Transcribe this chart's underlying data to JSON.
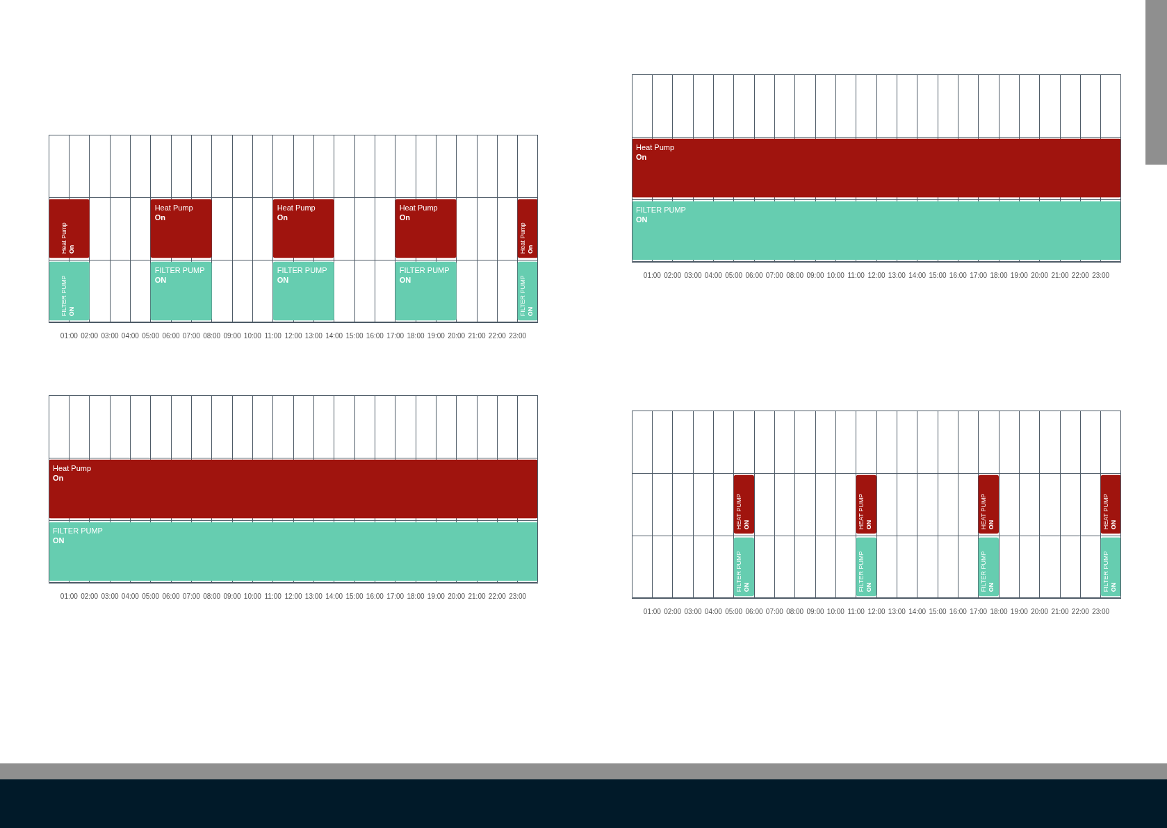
{
  "chart_data": [
    {
      "type": "bar",
      "orientation": "horizontal",
      "categories": [
        null,
        null,
        null
      ],
      "series": [
        {
          "name": "Heat Pump",
          "color": "#a0140e",
          "base": [
            null,
            0,
            null
          ],
          "values": [
            null,
            2,
            null
          ],
          "value_labels": [
            null,
            "On",
            null
          ]
        },
        {
          "name": "Heat Pump",
          "color": "#a0140e",
          "base": [
            null,
            5,
            null
          ],
          "values": [
            null,
            3,
            null
          ],
          "value_labels": [
            null,
            "On",
            null
          ]
        },
        {
          "name": "Heat Pump",
          "color": "#a0140e",
          "base": [
            null,
            11,
            null
          ],
          "values": [
            null,
            3,
            null
          ],
          "value_labels": [
            null,
            "On",
            null
          ]
        },
        {
          "name": "Heat Pump",
          "color": "#a0140e",
          "base": [
            null,
            17,
            null
          ],
          "values": [
            null,
            3,
            null
          ],
          "value_labels": [
            null,
            "On",
            null
          ]
        },
        {
          "name": "Heat Pump",
          "color": "#a0140e",
          "base": [
            null,
            23,
            null
          ],
          "values": [
            null,
            1,
            null
          ],
          "value_labels": [
            null,
            "On",
            null
          ]
        },
        {
          "name": "FILTER PUMP",
          "color": "#66cdb0",
          "base": [
            null,
            null,
            0
          ],
          "values": [
            null,
            null,
            2
          ],
          "value_labels": [
            null,
            null,
            "ON"
          ]
        },
        {
          "name": "FILTER PUMP",
          "color": "#66cdb0",
          "base": [
            null,
            null,
            5
          ],
          "values": [
            null,
            null,
            3
          ],
          "value_labels": [
            null,
            null,
            "ON"
          ]
        },
        {
          "name": "FILTER PUMP",
          "color": "#66cdb0",
          "base": [
            null,
            null,
            11
          ],
          "values": [
            null,
            null,
            3
          ],
          "value_labels": [
            null,
            null,
            "ON"
          ]
        },
        {
          "name": "FILTER PUMP",
          "color": "#66cdb0",
          "base": [
            null,
            null,
            17
          ],
          "values": [
            null,
            null,
            3
          ],
          "value_labels": [
            null,
            null,
            "ON"
          ]
        },
        {
          "name": "FILTER PUMP",
          "color": "#66cdb0",
          "base": [
            null,
            null,
            23
          ],
          "values": [
            null,
            null,
            1
          ],
          "value_labels": [
            null,
            null,
            "ON"
          ]
        }
      ],
      "xlim": [
        0,
        24
      ],
      "xticks": [
        {
          "value": 1,
          "label": "01:00"
        },
        {
          "value": 2,
          "label": "02:00"
        },
        {
          "value": 3,
          "label": "03:00"
        },
        {
          "value": 4,
          "label": "04:00"
        },
        {
          "value": 5,
          "label": "05:00"
        },
        {
          "value": 6,
          "label": "06:00"
        },
        {
          "value": 7,
          "label": "07:00"
        },
        {
          "value": 8,
          "label": "08:00"
        },
        {
          "value": 9,
          "label": "09:00"
        },
        {
          "value": 10,
          "label": "10:00"
        },
        {
          "value": 11,
          "label": "11:00"
        },
        {
          "value": 12,
          "label": "12:00"
        },
        {
          "value": 13,
          "label": "13:00"
        },
        {
          "value": 14,
          "label": "14:00"
        },
        {
          "value": 15,
          "label": "15:00"
        },
        {
          "value": 16,
          "label": "16:00"
        },
        {
          "value": 17,
          "label": "17:00"
        },
        {
          "value": 18,
          "label": "18:00"
        },
        {
          "value": 19,
          "label": "19:00"
        },
        {
          "value": 20,
          "label": "20:00"
        },
        {
          "value": 21,
          "label": "21:00"
        },
        {
          "value": 22,
          "label": "22:00"
        },
        {
          "value": 23,
          "label": "23:00"
        }
      ],
      "grid": true,
      "tick_labels": "x"
    },
    {
      "type": "bar",
      "orientation": "horizontal",
      "categories": [
        null,
        null,
        null
      ],
      "series": [
        {
          "name": "Heat Pump",
          "color": "#a0140e",
          "base": [
            null,
            0,
            null
          ],
          "values": [
            null,
            24,
            null
          ],
          "value_labels": [
            null,
            "On",
            null
          ]
        },
        {
          "name": "FILTER PUMP",
          "color": "#66cdb0",
          "base": [
            null,
            null,
            0
          ],
          "values": [
            null,
            null,
            24
          ],
          "value_labels": [
            null,
            null,
            "ON"
          ]
        }
      ],
      "xlim": [
        0,
        24
      ],
      "xticks": [
        {
          "value": 1,
          "label": "01:00"
        },
        {
          "value": 2,
          "label": "02:00"
        },
        {
          "value": 3,
          "label": "03:00"
        },
        {
          "value": 4,
          "label": "04:00"
        },
        {
          "value": 5,
          "label": "05:00"
        },
        {
          "value": 6,
          "label": "06:00"
        },
        {
          "value": 7,
          "label": "07:00"
        },
        {
          "value": 8,
          "label": "08:00"
        },
        {
          "value": 9,
          "label": "09:00"
        },
        {
          "value": 10,
          "label": "10:00"
        },
        {
          "value": 11,
          "label": "11:00"
        },
        {
          "value": 12,
          "label": "12:00"
        },
        {
          "value": 13,
          "label": "13:00"
        },
        {
          "value": 14,
          "label": "14:00"
        },
        {
          "value": 15,
          "label": "15:00"
        },
        {
          "value": 16,
          "label": "16:00"
        },
        {
          "value": 17,
          "label": "17:00"
        },
        {
          "value": 18,
          "label": "18:00"
        },
        {
          "value": 19,
          "label": "19:00"
        },
        {
          "value": 20,
          "label": "20:00"
        },
        {
          "value": 21,
          "label": "21:00"
        },
        {
          "value": 22,
          "label": "22:00"
        },
        {
          "value": 23,
          "label": "23:00"
        }
      ],
      "grid": true,
      "tick_labels": "x"
    },
    {
      "type": "bar",
      "orientation": "horizontal",
      "categories": [
        null,
        null,
        null
      ],
      "series": [
        {
          "name": "Heat Pump",
          "color": "#a0140e",
          "base": [
            null,
            0,
            null
          ],
          "values": [
            null,
            24,
            null
          ],
          "value_labels": [
            null,
            "On",
            null
          ]
        },
        {
          "name": "FILTER PUMP",
          "color": "#66cdb0",
          "base": [
            null,
            null,
            0
          ],
          "values": [
            null,
            null,
            24
          ],
          "value_labels": [
            null,
            null,
            "ON"
          ]
        }
      ],
      "xlim": [
        0,
        24
      ],
      "xticks": [
        {
          "value": 1,
          "label": "01:00"
        },
        {
          "value": 2,
          "label": "02:00"
        },
        {
          "value": 3,
          "label": "03:00"
        },
        {
          "value": 4,
          "label": "04:00"
        },
        {
          "value": 5,
          "label": "05:00"
        },
        {
          "value": 6,
          "label": "06:00"
        },
        {
          "value": 7,
          "label": "07:00"
        },
        {
          "value": 8,
          "label": "08:00"
        },
        {
          "value": 9,
          "label": "09:00"
        },
        {
          "value": 10,
          "label": "10:00"
        },
        {
          "value": 11,
          "label": "11:00"
        },
        {
          "value": 12,
          "label": "12:00"
        },
        {
          "value": 13,
          "label": "13:00"
        },
        {
          "value": 14,
          "label": "14:00"
        },
        {
          "value": 15,
          "label": "15:00"
        },
        {
          "value": 16,
          "label": "16:00"
        },
        {
          "value": 17,
          "label": "17:00"
        },
        {
          "value": 18,
          "label": "18:00"
        },
        {
          "value": 19,
          "label": "19:00"
        },
        {
          "value": 20,
          "label": "20:00"
        },
        {
          "value": 21,
          "label": "21:00"
        },
        {
          "value": 22,
          "label": "22:00"
        },
        {
          "value": 23,
          "label": "23:00"
        }
      ],
      "grid": true,
      "tick_labels": "x"
    },
    {
      "type": "bar",
      "orientation": "horizontal",
      "categories": [
        null,
        null,
        null
      ],
      "series": [
        {
          "name": "HEAT PUMP",
          "color": "#a0140e",
          "base": [
            null,
            5,
            null
          ],
          "values": [
            null,
            1,
            null
          ],
          "value_labels": [
            null,
            "ON",
            null
          ]
        },
        {
          "name": "HEAT PUMP",
          "color": "#a0140e",
          "base": [
            null,
            11,
            null
          ],
          "values": [
            null,
            1,
            null
          ],
          "value_labels": [
            null,
            "ON",
            null
          ]
        },
        {
          "name": "HEAT PUMP",
          "color": "#a0140e",
          "base": [
            null,
            17,
            null
          ],
          "values": [
            null,
            1,
            null
          ],
          "value_labels": [
            null,
            "ON",
            null
          ]
        },
        {
          "name": "HEAT PUMP",
          "color": "#a0140e",
          "base": [
            null,
            23,
            null
          ],
          "values": [
            null,
            1,
            null
          ],
          "value_labels": [
            null,
            "ON",
            null
          ]
        },
        {
          "name": "FILTER PUMP",
          "color": "#66cdb0",
          "base": [
            null,
            null,
            5
          ],
          "values": [
            null,
            null,
            1
          ],
          "value_labels": [
            null,
            null,
            "ON"
          ]
        },
        {
          "name": "FILTER PUMP",
          "color": "#66cdb0",
          "base": [
            null,
            null,
            11
          ],
          "values": [
            null,
            null,
            1
          ],
          "value_labels": [
            null,
            null,
            "ON"
          ]
        },
        {
          "name": "FILTER PUMP",
          "color": "#66cdb0",
          "base": [
            null,
            null,
            17
          ],
          "values": [
            null,
            null,
            1
          ],
          "value_labels": [
            null,
            null,
            "ON"
          ]
        },
        {
          "name": "FILTER PUMP",
          "color": "#66cdb0",
          "base": [
            null,
            null,
            23
          ],
          "values": [
            null,
            null,
            1
          ],
          "value_labels": [
            null,
            null,
            "ON"
          ]
        }
      ],
      "xlim": [
        0,
        24
      ],
      "xticks": [
        {
          "value": 1,
          "label": "01:00"
        },
        {
          "value": 2,
          "label": "02:00"
        },
        {
          "value": 3,
          "label": "03:00"
        },
        {
          "value": 4,
          "label": "04:00"
        },
        {
          "value": 5,
          "label": "05:00"
        },
        {
          "value": 6,
          "label": "06:00"
        },
        {
          "value": 7,
          "label": "07:00"
        },
        {
          "value": 8,
          "label": "08:00"
        },
        {
          "value": 9,
          "label": "09:00"
        },
        {
          "value": 10,
          "label": "10:00"
        },
        {
          "value": 11,
          "label": "11:00"
        },
        {
          "value": 12,
          "label": "12:00"
        },
        {
          "value": 13,
          "label": "13:00"
        },
        {
          "value": 14,
          "label": "14:00"
        },
        {
          "value": 15,
          "label": "15:00"
        },
        {
          "value": 16,
          "label": "16:00"
        },
        {
          "value": 17,
          "label": "17:00"
        },
        {
          "value": 18,
          "label": "18:00"
        },
        {
          "value": 19,
          "label": "19:00"
        },
        {
          "value": 20,
          "label": "20:00"
        },
        {
          "value": 21,
          "label": "21:00"
        },
        {
          "value": 22,
          "label": "22:00"
        },
        {
          "value": 23,
          "label": "23:00"
        }
      ],
      "grid": true,
      "tick_labels": "x"
    }
  ]
}
